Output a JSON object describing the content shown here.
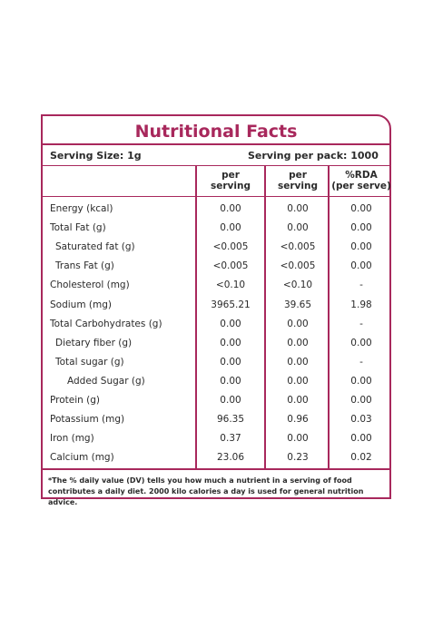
{
  "title": "Nutritional Facts",
  "serving_size": "Serving Size: 1g",
  "serving_per_pack": "Serving per pack: 1000",
  "columns": [
    {
      "line1": "per",
      "line2": "serving"
    },
    {
      "line1": "per",
      "line2": "serving"
    },
    {
      "line1": "%RDA",
      "line2": "(per serve)"
    }
  ],
  "rows": [
    {
      "name": "Energy (kcal)",
      "indent": 0,
      "v1": "0.00",
      "v2": "0.00",
      "v3": "0.00"
    },
    {
      "name": "Total Fat (g)",
      "indent": 0,
      "v1": "0.00",
      "v2": "0.00",
      "v3": "0.00"
    },
    {
      "name": "Saturated fat (g)",
      "indent": 1,
      "v1": "<0.005",
      "v2": "<0.005",
      "v3": "0.00"
    },
    {
      "name": "Trans Fat (g)",
      "indent": 1,
      "v1": "<0.005",
      "v2": "<0.005",
      "v3": "0.00"
    },
    {
      "name": "Cholesterol (mg)",
      "indent": 0,
      "v1": "<0.10",
      "v2": "<0.10",
      "v3": "-"
    },
    {
      "name": "Sodium (mg)",
      "indent": 0,
      "v1": "3965.21",
      "v2": "39.65",
      "v3": "1.98"
    },
    {
      "name": "Total Carbohydrates  (g)",
      "indent": 0,
      "v1": "0.00",
      "v2": "0.00",
      "v3": "-"
    },
    {
      "name": "Dietary fiber (g)",
      "indent": 1,
      "v1": "0.00",
      "v2": "0.00",
      "v3": "0.00"
    },
    {
      "name": "Total sugar (g)",
      "indent": 1,
      "v1": "0.00",
      "v2": "0.00",
      "v3": "-"
    },
    {
      "name": "Added Sugar (g)",
      "indent": 2,
      "v1": "0.00",
      "v2": "0.00",
      "v3": "0.00"
    },
    {
      "name": "Protein (g)",
      "indent": 0,
      "v1": "0.00",
      "v2": "0.00",
      "v3": "0.00"
    },
    {
      "name": "Potassium (mg)",
      "indent": 0,
      "v1": "96.35",
      "v2": "0.96",
      "v3": "0.03"
    },
    {
      "name": "Iron (mg)",
      "indent": 0,
      "v1": "0.37",
      "v2": "0.00",
      "v3": "0.00"
    },
    {
      "name": "Calcium (mg)",
      "indent": 0,
      "v1": "23.06",
      "v2": "0.23",
      "v3": "0.02"
    }
  ],
  "footnote": "*The % daily value (DV) tells you how much a nutrient in a serving of food contributes a daily diet. 2000 kilo calories a day is used for general nutrition advice.",
  "colors": {
    "accent": "#a8285c",
    "text": "#2b2b2b"
  }
}
